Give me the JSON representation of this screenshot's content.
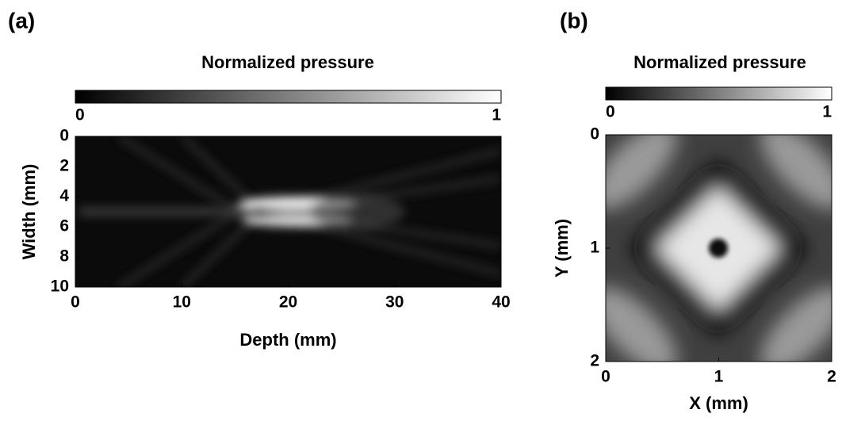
{
  "chart_data": [
    {
      "type": "heatmap",
      "panel_label": "(a)",
      "title": "Normalized pressure",
      "xlabel": "Depth (mm)",
      "ylabel": "Width (mm)",
      "xlim": [
        0,
        40
      ],
      "xticks": [
        0,
        10,
        20,
        30,
        40
      ],
      "ylim": [
        0,
        10
      ],
      "yticks": [
        0,
        2,
        4,
        6,
        8,
        10
      ],
      "y_inverted": true,
      "colormap": "gray",
      "clim": [
        0,
        1
      ],
      "cticks": [
        0,
        1
      ]
    },
    {
      "type": "heatmap",
      "panel_label": "(b)",
      "title": "Normalized pressure",
      "xlabel": "X (mm)",
      "ylabel": "Y (mm)",
      "xlim": [
        0,
        2
      ],
      "xticks": [
        0,
        1,
        2
      ],
      "ylim": [
        0,
        2
      ],
      "yticks": [
        0,
        1,
        2
      ],
      "y_inverted": true,
      "colormap": "gray",
      "clim": [
        0,
        1
      ],
      "cticks": [
        0,
        1
      ]
    }
  ]
}
